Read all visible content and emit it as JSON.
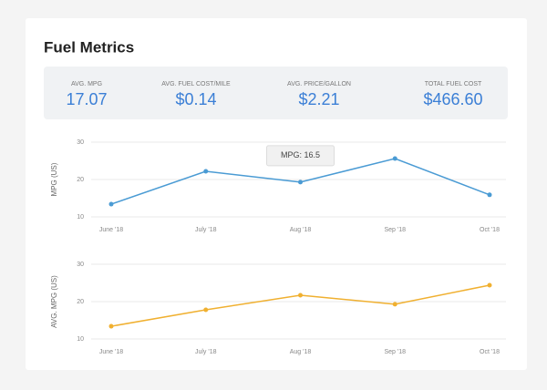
{
  "header": {
    "title": "Fuel Metrics"
  },
  "metrics": [
    {
      "label": "AVG. MPG",
      "value": "17.07"
    },
    {
      "label": "AVG. FUEL COST/MILE",
      "value": "$0.14"
    },
    {
      "label": "AVG. PRICE/GALLON",
      "value": "$2.21"
    },
    {
      "label": "TOTAL FUEL COST",
      "value": "$466.60"
    }
  ],
  "chart_data": [
    {
      "type": "line",
      "y_label": "MPG (US)",
      "categories": [
        "June '18",
        "July '18",
        "Aug '18",
        "Sep '18",
        "Oct '18"
      ],
      "values": [
        13.4,
        22.2,
        19.3,
        25.6,
        15.9
      ],
      "color": "#4a9bd4",
      "ylim": [
        10,
        30
      ],
      "yticks": [
        10,
        20,
        30
      ],
      "grid": true,
      "annotation": "MPG: 16.5"
    },
    {
      "type": "line",
      "y_label": "AVG. MPG (US)",
      "categories": [
        "June '18",
        "July '18",
        "Aug '18",
        "Sep '18",
        "Oct '18"
      ],
      "values": [
        13.4,
        17.8,
        21.7,
        19.3,
        24.4
      ],
      "color": "#f0b030",
      "ylim": [
        10,
        30
      ],
      "yticks": [
        10,
        20,
        30
      ],
      "grid": true
    }
  ]
}
